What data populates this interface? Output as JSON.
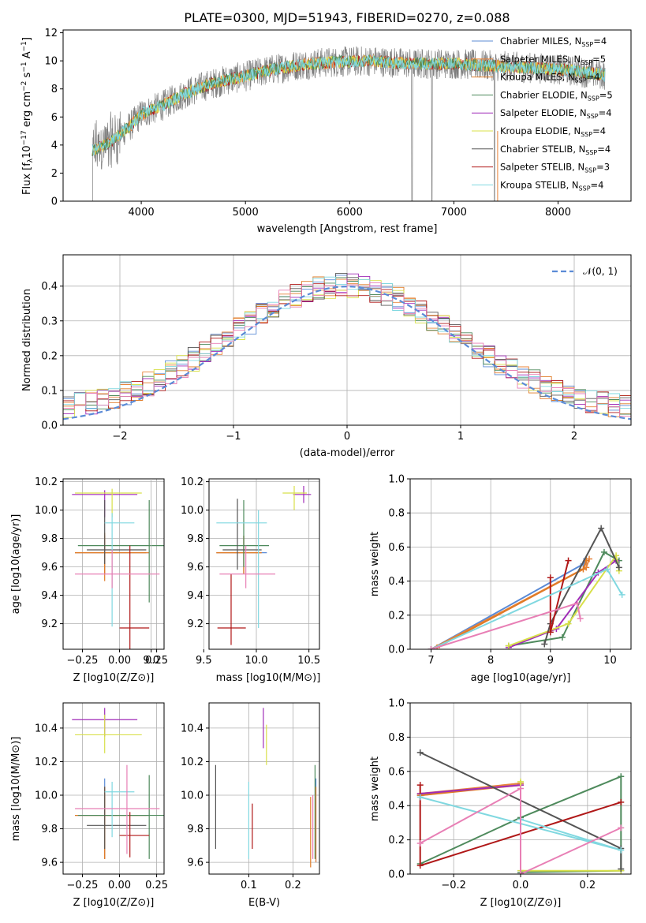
{
  "title": "PLATE=0300, MJD=51943, FIBERID=0270, z=0.088",
  "colors": {
    "chabrier_miles": "#5b8bd6",
    "salpeter_miles": "#e8833a",
    "kroupa_miles": "#e07b26",
    "chabrier_elodie": "#4e8a5c",
    "salpeter_elodie": "#a02cb8",
    "kroupa_elodie": "#d8e04a",
    "chabrier_stelib": "#555555",
    "salpeter_stelib": "#b01818",
    "kroupa_stelib": "#80d8e0",
    "pink": "#e87fb5",
    "gaussian": "#5b8bd6",
    "spectrum_gray": "#7f7f7f"
  },
  "chart_data": [
    {
      "type": "line",
      "name": "spectrum",
      "xlabel": "wavelength [Angstrom, rest frame]",
      "ylabel": "Flux [f_λ 10^-17 erg cm^-2 s^-1 A^-1]",
      "xlim": [
        3250,
        8700
      ],
      "ylim": [
        0,
        12.2
      ],
      "xticks": [
        "4000",
        "5000",
        "6000",
        "7000",
        "8000"
      ],
      "yticks": [
        "0",
        "2",
        "4",
        "6",
        "8",
        "10",
        "12"
      ],
      "legend": {
        "placement": "top-right",
        "entries": [
          "Chabrier MILES, N_SSP=4",
          "Salpeter MILES, N_SSP=5",
          "Kroupa MILES, N_SSP=4",
          "Chabrier ELODIE, N_SSP=5",
          "Salpeter ELODIE, N_SSP=4",
          "Kroupa ELODIE, N_SSP=4",
          "Chabrier STELIB, N_SSP=4",
          "Salpeter STELIB, N_SSP=3",
          "Kroupa STELIB, N_SSP=4"
        ]
      },
      "continuum": [
        [
          3530,
          3.6
        ],
        [
          3700,
          4.2
        ],
        [
          3900,
          5.4
        ],
        [
          4000,
          6.2
        ],
        [
          4200,
          6.8
        ],
        [
          4400,
          7.6
        ],
        [
          4600,
          8.2
        ],
        [
          4800,
          8.6
        ],
        [
          5000,
          8.9
        ],
        [
          5200,
          9.3
        ],
        [
          5500,
          9.7
        ],
        [
          5800,
          9.9
        ],
        [
          6200,
          10.0
        ],
        [
          6600,
          9.8
        ],
        [
          7000,
          9.8
        ],
        [
          7500,
          9.6
        ],
        [
          8000,
          9.4
        ],
        [
          8450,
          9.0
        ]
      ]
    },
    {
      "type": "histogram",
      "name": "residuals",
      "xlabel": "(data-model)/error",
      "ylabel": "Normed distribution",
      "xlim": [
        -2.5,
        2.5
      ],
      "ylim": [
        0,
        0.49
      ],
      "xticks": [
        "−2",
        "−1",
        "0",
        "1",
        "2"
      ],
      "yticks": [
        "0.0",
        "0.1",
        "0.2",
        "0.3",
        "0.4"
      ],
      "legend": {
        "placement": "top-right",
        "entries": [
          "𝒩(0, 1)"
        ]
      },
      "bin_width": 0.1,
      "bins_from": -2.5
    },
    {
      "type": "scatter",
      "name": "age-vs-Z",
      "xlabel": "Z [log10(Z/Z⊙)]",
      "ylabel": "age  [log10(age/yr)]",
      "xlim": [
        -0.38,
        0.3
      ],
      "ylim": [
        9.02,
        10.22
      ],
      "xticks": [
        "−0.25",
        "0.00",
        "0.25"
      ],
      "yticks": [
        "9.2",
        "9.4",
        "9.6",
        "9.8",
        "10.0",
        "10.2"
      ],
      "points": [
        {
          "c": "chabrier_miles",
          "x": -0.1,
          "xe": [
            -0.3,
            0.2
          ],
          "y": 9.7,
          "ye": [
            9.55,
            9.82
          ]
        },
        {
          "c": "salpeter_miles",
          "x": -0.1,
          "xe": [
            -0.3,
            0.2
          ],
          "y": 9.7,
          "ye": [
            9.55,
            9.82
          ]
        },
        {
          "c": "kroupa_miles",
          "x": -0.1,
          "xe": [
            -0.3,
            0.18
          ],
          "y": 9.7,
          "ye": [
            9.5,
            9.84
          ]
        },
        {
          "c": "chabrier_elodie",
          "x": 0.2,
          "xe": [
            -0.28,
            0.3
          ],
          "y": 9.75,
          "ye": [
            9.35,
            10.07
          ]
        },
        {
          "c": "salpeter_elodie",
          "x": -0.1,
          "xe": [
            -0.32,
            0.12
          ],
          "y": 10.11,
          "ye": [
            9.95,
            10.14
          ]
        },
        {
          "c": "kroupa_elodie",
          "x": -0.05,
          "xe": [
            -0.3,
            0.15
          ],
          "y": 10.12,
          "ye": [
            9.95,
            10.15
          ]
        },
        {
          "c": "chabrier_stelib",
          "x": -0.1,
          "xe": [
            -0.22,
            0.18
          ],
          "y": 9.72,
          "ye": [
            9.62,
            10.07
          ]
        },
        {
          "c": "salpeter_stelib",
          "x": 0.07,
          "xe": [
            0.0,
            0.2
          ],
          "y": 9.17,
          "ye": [
            9.0,
            9.75
          ]
        },
        {
          "c": "kroupa_stelib",
          "x": -0.05,
          "xe": [
            -0.1,
            0.1
          ],
          "y": 9.91,
          "ye": [
            9.18,
            9.98
          ]
        },
        {
          "c": "pink",
          "x": -0.05,
          "xe": [
            -0.3,
            0.27
          ],
          "y": 9.55,
          "ye": [
            9.45,
            9.72
          ]
        }
      ]
    },
    {
      "type": "scatter",
      "name": "age-vs-mass",
      "xlabel": "mass [log10(M/M⊙)]",
      "ylabel": "",
      "xlim": [
        9.55,
        10.6
      ],
      "ylim": [
        9.02,
        10.22
      ],
      "xticks": [
        "9.0",
        "9.5",
        "10.0",
        "10.5"
      ],
      "yticks": [
        "9.2",
        "9.4",
        "9.6",
        "9.8",
        "10.0",
        "10.2"
      ],
      "points": [
        {
          "c": "chabrier_miles",
          "x": 9.88,
          "xe": [
            9.62,
            10.1
          ],
          "y": 9.7,
          "ye": [
            9.55,
            9.82
          ]
        },
        {
          "c": "salpeter_miles",
          "x": 9.88,
          "xe": [
            9.62,
            10.05
          ],
          "y": 9.7,
          "ye": [
            9.55,
            9.82
          ]
        },
        {
          "c": "kroupa_miles",
          "x": 9.88,
          "xe": [
            9.62,
            10.05
          ],
          "y": 9.7,
          "ye": [
            9.55,
            9.82
          ]
        },
        {
          "c": "chabrier_elodie",
          "x": 9.88,
          "xe": [
            9.65,
            10.12
          ],
          "y": 9.75,
          "ye": [
            9.6,
            10.07
          ]
        },
        {
          "c": "salpeter_elodie",
          "x": 10.45,
          "xe": [
            10.35,
            10.52
          ],
          "y": 10.11,
          "ye": [
            10.05,
            10.17
          ]
        },
        {
          "c": "kroupa_elodie",
          "x": 10.36,
          "xe": [
            10.25,
            10.48
          ],
          "y": 10.12,
          "ye": [
            10.0,
            10.17
          ]
        },
        {
          "c": "chabrier_stelib",
          "x": 9.82,
          "xe": [
            9.68,
            10.05
          ],
          "y": 9.72,
          "ye": [
            9.58,
            10.08
          ]
        },
        {
          "c": "salpeter_stelib",
          "x": 9.76,
          "xe": [
            9.63,
            9.9
          ],
          "y": 9.17,
          "ye": [
            9.05,
            9.55
          ]
        },
        {
          "c": "kroupa_stelib",
          "x": 10.02,
          "xe": [
            9.62,
            10.1
          ],
          "y": 9.91,
          "ye": [
            9.17,
            10.0
          ]
        },
        {
          "c": "pink",
          "x": 9.9,
          "xe": [
            9.65,
            10.18
          ],
          "y": 9.55,
          "ye": [
            9.45,
            9.75
          ]
        }
      ]
    },
    {
      "type": "line",
      "name": "mass-weight-vs-age",
      "xlabel": "age  [log10(age/yr)]",
      "ylabel": "mass weight",
      "xlim": [
        6.65,
        10.35
      ],
      "ylim": [
        0,
        1
      ],
      "xticks": [
        "7",
        "8",
        "9",
        "10"
      ],
      "yticks": [
        "0.0",
        "0.2",
        "0.4",
        "0.6",
        "0.8",
        "1.0"
      ],
      "series": [
        {
          "c": "chabrier_miles",
          "points": [
            [
              7.0,
              0.0
            ],
            [
              9.55,
              0.5
            ],
            [
              9.6,
              0.53
            ]
          ]
        },
        {
          "c": "salpeter_miles",
          "points": [
            [
              7.0,
              0.0
            ],
            [
              9.6,
              0.48
            ],
            [
              9.65,
              0.53
            ]
          ]
        },
        {
          "c": "kroupa_miles",
          "points": [
            [
              7.1,
              0.01
            ],
            [
              9.55,
              0.47
            ],
            [
              9.6,
              0.52
            ]
          ]
        },
        {
          "c": "chabrier_elodie",
          "points": [
            [
              8.3,
              0.02
            ],
            [
              9.2,
              0.07
            ],
            [
              9.9,
              0.57
            ],
            [
              10.15,
              0.52
            ]
          ]
        },
        {
          "c": "salpeter_elodie",
          "points": [
            [
              8.3,
              0.01
            ],
            [
              9.1,
              0.12
            ],
            [
              9.8,
              0.45
            ],
            [
              10.1,
              0.52
            ]
          ]
        },
        {
          "c": "kroupa_elodie",
          "points": [
            [
              8.3,
              0.02
            ],
            [
              9.3,
              0.15
            ],
            [
              10.1,
              0.55
            ],
            [
              10.15,
              0.46
            ]
          ]
        },
        {
          "c": "chabrier_stelib",
          "points": [
            [
              8.9,
              0.03
            ],
            [
              9.0,
              0.15
            ],
            [
              9.85,
              0.71
            ],
            [
              10.15,
              0.48
            ]
          ]
        },
        {
          "c": "salpeter_stelib",
          "points": [
            [
              9.0,
              0.42
            ],
            [
              9.0,
              0.1
            ],
            [
              9.3,
              0.52
            ]
          ]
        },
        {
          "c": "kroupa_stelib",
          "points": [
            [
              7.0,
              0.0
            ],
            [
              9.95,
              0.47
            ],
            [
              10.2,
              0.32
            ]
          ]
        },
        {
          "c": "pink",
          "points": [
            [
              7.0,
              0.0
            ],
            [
              9.45,
              0.27
            ],
            [
              9.5,
              0.18
            ]
          ]
        }
      ]
    },
    {
      "type": "scatter",
      "name": "mass-vs-Z",
      "xlabel": "Z [log10(Z/Z⊙)]",
      "ylabel": "mass [log10(M/M⊙)]",
      "xlim": [
        -0.38,
        0.3
      ],
      "ylim": [
        9.53,
        10.55
      ],
      "xticks": [
        "−0.25",
        "0.00",
        "0.25"
      ],
      "yticks": [
        "9.6",
        "9.8",
        "10.0",
        "10.2",
        "10.4"
      ],
      "points": [
        {
          "c": "chabrier_miles",
          "x": -0.1,
          "xe": [
            -0.3,
            0.2
          ],
          "y": 9.88,
          "ye": [
            9.62,
            10.1
          ]
        },
        {
          "c": "salpeter_miles",
          "x": -0.1,
          "xe": [
            -0.3,
            0.2
          ],
          "y": 9.88,
          "ye": [
            9.62,
            10.05
          ]
        },
        {
          "c": "kroupa_miles",
          "x": -0.1,
          "xe": [
            -0.3,
            0.18
          ],
          "y": 9.88,
          "ye": [
            9.62,
            10.05
          ]
        },
        {
          "c": "chabrier_elodie",
          "x": 0.2,
          "xe": [
            -0.28,
            0.3
          ],
          "y": 9.88,
          "ye": [
            9.62,
            10.12
          ]
        },
        {
          "c": "salpeter_elodie",
          "x": -0.1,
          "xe": [
            -0.32,
            0.12
          ],
          "y": 10.45,
          "ye": [
            10.35,
            10.52
          ]
        },
        {
          "c": "kroupa_elodie",
          "x": -0.1,
          "xe": [
            -0.3,
            0.15
          ],
          "y": 10.36,
          "ye": [
            10.25,
            10.48
          ]
        },
        {
          "c": "chabrier_stelib",
          "x": -0.1,
          "xe": [
            -0.22,
            0.18
          ],
          "y": 9.82,
          "ye": [
            9.68,
            10.05
          ]
        },
        {
          "c": "salpeter_stelib",
          "x": 0.07,
          "xe": [
            0.0,
            0.2
          ],
          "y": 9.76,
          "ye": [
            9.63,
            9.9
          ]
        },
        {
          "c": "kroupa_stelib",
          "x": -0.05,
          "xe": [
            -0.1,
            0.1
          ],
          "y": 10.02,
          "ye": [
            9.75,
            10.08
          ]
        },
        {
          "c": "pink",
          "x": 0.05,
          "xe": [
            -0.3,
            0.27
          ],
          "y": 9.92,
          "ye": [
            9.65,
            10.18
          ]
        }
      ]
    },
    {
      "type": "scatter",
      "name": "mass-vs-ebv",
      "xlabel": "E(B-V)",
      "ylabel": "",
      "xlim": [
        0.01,
        0.26
      ],
      "ylim": [
        9.53,
        10.55
      ],
      "xticks": [
        "0.1",
        "0.2"
      ],
      "yticks": [
        "9.6",
        "9.8",
        "10.0",
        "10.2",
        "10.4"
      ],
      "points": [
        {
          "c": "chabrier_miles",
          "x": 0.252,
          "ye": [
            9.6,
            10.1
          ]
        },
        {
          "c": "salpeter_miles",
          "x": 0.252,
          "ye": [
            9.6,
            10.05
          ]
        },
        {
          "c": "kroupa_miles",
          "x": 0.24,
          "ye": [
            9.57,
            9.99
          ]
        },
        {
          "c": "chabrier_elodie",
          "x": 0.25,
          "ye": [
            9.62,
            10.18
          ]
        },
        {
          "c": "salpeter_elodie",
          "x": 0.133,
          "ye": [
            10.28,
            10.52
          ]
        },
        {
          "c": "kroupa_elodie",
          "x": 0.14,
          "ye": [
            10.18,
            10.42
          ]
        },
        {
          "c": "chabrier_stelib",
          "x": 0.025,
          "ye": [
            9.68,
            10.18
          ]
        },
        {
          "c": "salpeter_stelib",
          "x": 0.108,
          "ye": [
            9.68,
            9.95
          ]
        },
        {
          "c": "kroupa_stelib",
          "x": 0.1,
          "ye": [
            9.62,
            10.08
          ]
        },
        {
          "c": "pink",
          "x": 0.245,
          "ye": [
            9.62,
            10.0
          ]
        }
      ]
    },
    {
      "type": "line",
      "name": "mass-weight-vs-Z",
      "xlabel": "Z [log10(Z/Z⊙)]",
      "ylabel": "mass weight",
      "xlim": [
        -0.33,
        0.33
      ],
      "ylim": [
        0,
        1
      ],
      "xticks": [
        "−0.2",
        "0.0",
        "0.2"
      ],
      "yticks": [
        "0.0",
        "0.2",
        "0.4",
        "0.6",
        "0.8",
        "1.0"
      ],
      "series": [
        {
          "c": "chabrier_miles",
          "points": [
            [
              -0.3,
              0.46
            ],
            [
              0.0,
              0.53
            ]
          ]
        },
        {
          "c": "salpeter_miles",
          "points": [
            [
              -0.3,
              0.47
            ],
            [
              0.0,
              0.53
            ]
          ]
        },
        {
          "c": "kroupa_miles",
          "points": [
            [
              -0.3,
              0.46
            ],
            [
              0.0,
              0.52
            ]
          ]
        },
        {
          "c": "chabrier_elodie",
          "points": [
            [
              -0.3,
              0.06
            ],
            [
              0.0,
              0.33
            ],
            [
              0.3,
              0.57
            ],
            [
              0.3,
              0.02
            ],
            [
              0.0,
              0.01
            ]
          ]
        },
        {
          "c": "salpeter_elodie",
          "points": [
            [
              -0.3,
              0.47
            ],
            [
              0.0,
              0.52
            ]
          ]
        },
        {
          "c": "kroupa_elodie",
          "points": [
            [
              0.0,
              0.54
            ],
            [
              0.0,
              0.02
            ],
            [
              0.3,
              0.02
            ]
          ]
        },
        {
          "c": "chabrier_stelib",
          "points": [
            [
              -0.3,
              0.71
            ],
            [
              0.3,
              0.15
            ],
            [
              0.3,
              0.03
            ]
          ]
        },
        {
          "c": "salpeter_stelib",
          "points": [
            [
              -0.3,
              0.52
            ],
            [
              -0.3,
              0.05
            ],
            [
              0.3,
              0.42
            ]
          ]
        },
        {
          "c": "kroupa_stelib",
          "points": [
            [
              -0.3,
              0.45
            ],
            [
              0.3,
              0.14
            ],
            [
              0.0,
              0.32
            ],
            [
              0.0,
              0.0
            ]
          ]
        },
        {
          "c": "pink",
          "points": [
            [
              -0.3,
              0.18
            ],
            [
              0.0,
              0.5
            ],
            [
              0.0,
              0.0
            ],
            [
              0.3,
              0.27
            ]
          ]
        }
      ]
    }
  ]
}
